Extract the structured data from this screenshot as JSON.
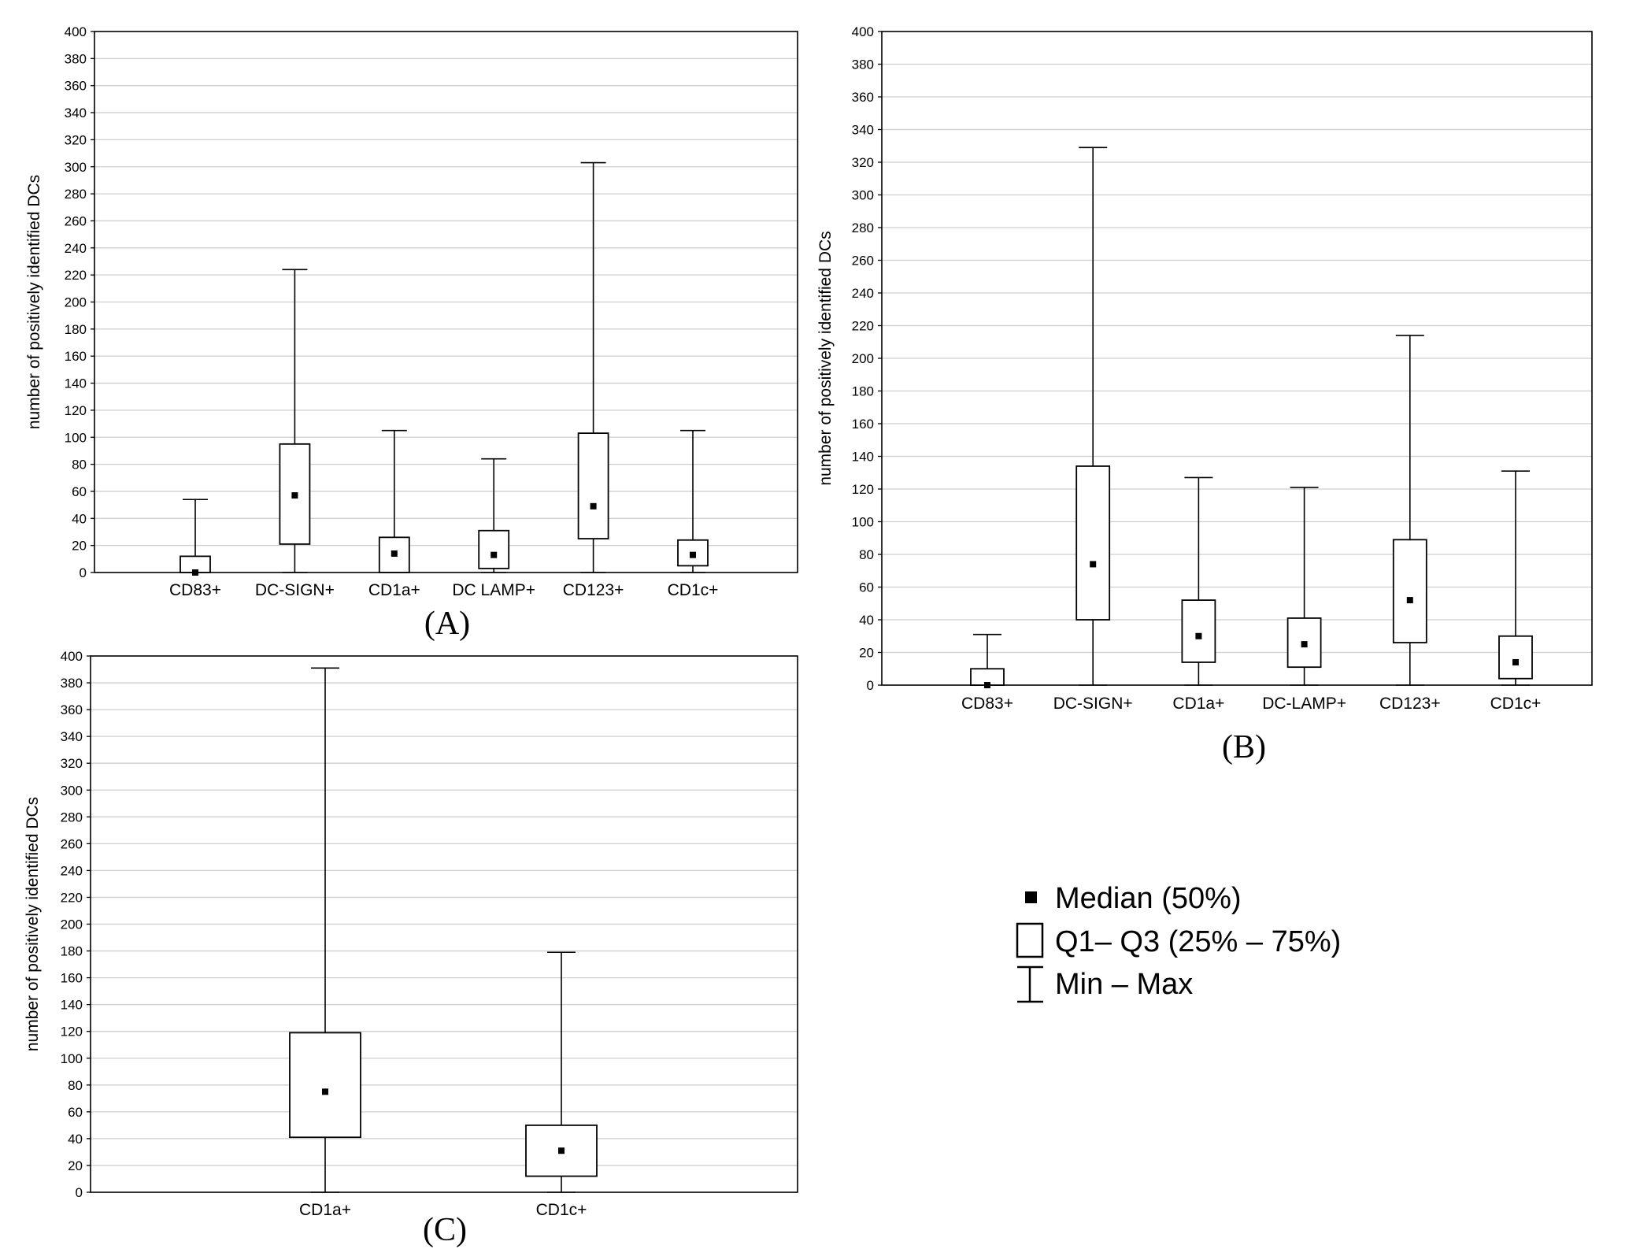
{
  "figure": {
    "panels": [
      {
        "id": "A",
        "label": "(A)"
      },
      {
        "id": "B",
        "label": "(B)"
      },
      {
        "id": "C",
        "label": "(C)"
      }
    ],
    "legend": {
      "median": "Median (50%)",
      "box": "Q1– Q3 (25% – 75%)",
      "range": "Min – Max"
    }
  },
  "chart_data": [
    {
      "type": "box",
      "panel": "(A)",
      "ylabel": "number of positively identified DCs",
      "ylim": [
        0,
        400
      ],
      "yticks": [
        0,
        20,
        40,
        60,
        80,
        100,
        120,
        140,
        160,
        180,
        200,
        220,
        240,
        260,
        280,
        300,
        320,
        340,
        360,
        380,
        400
      ],
      "grid": true,
      "categories": [
        "CD83+",
        "DC-SIGN+",
        "CD1a+",
        "DC LAMP+",
        "CD123+",
        "CD1c+"
      ],
      "boxes": [
        {
          "min": 0,
          "q1": 0,
          "median": 0,
          "q3": 12,
          "max": 54
        },
        {
          "min": 0,
          "q1": 21,
          "median": 57,
          "q3": 95,
          "max": 224
        },
        {
          "min": 0,
          "q1": 0,
          "median": 14,
          "q3": 26,
          "max": 105
        },
        {
          "min": 0,
          "q1": 3,
          "median": 13,
          "q3": 31,
          "max": 84
        },
        {
          "min": 0,
          "q1": 25,
          "median": 49,
          "q3": 103,
          "max": 303
        },
        {
          "min": 0,
          "q1": 5,
          "median": 13,
          "q3": 24,
          "max": 105
        }
      ]
    },
    {
      "type": "box",
      "panel": "(B)",
      "ylabel": "number of positively identified DCs",
      "ylim": [
        0,
        400
      ],
      "yticks": [
        0,
        20,
        40,
        60,
        80,
        100,
        120,
        140,
        160,
        180,
        200,
        220,
        240,
        260,
        280,
        300,
        320,
        340,
        360,
        380,
        400
      ],
      "grid": true,
      "categories": [
        "CD83+",
        "DC-SIGN+",
        "CD1a+",
        "DC-LAMP+",
        "CD123+",
        "CD1c+"
      ],
      "boxes": [
        {
          "min": 0,
          "q1": 0,
          "median": 0,
          "q3": 10,
          "max": 31
        },
        {
          "min": 0,
          "q1": 40,
          "median": 74,
          "q3": 134,
          "max": 329
        },
        {
          "min": 0,
          "q1": 14,
          "median": 30,
          "q3": 52,
          "max": 127
        },
        {
          "min": 0,
          "q1": 11,
          "median": 25,
          "q3": 41,
          "max": 121
        },
        {
          "min": 0,
          "q1": 26,
          "median": 52,
          "q3": 89,
          "max": 214
        },
        {
          "min": 0,
          "q1": 4,
          "median": 14,
          "q3": 30,
          "max": 131
        }
      ]
    },
    {
      "type": "box",
      "panel": "(C)",
      "ylabel": "number of positively identified DCs",
      "ylim": [
        0,
        400
      ],
      "yticks": [
        0,
        20,
        40,
        60,
        80,
        100,
        120,
        140,
        160,
        180,
        200,
        220,
        240,
        260,
        280,
        300,
        320,
        340,
        360,
        380,
        400
      ],
      "grid": true,
      "categories": [
        "CD1a+",
        "CD1c+"
      ],
      "boxes": [
        {
          "min": 0,
          "q1": 41,
          "median": 75,
          "q3": 119,
          "max": 391
        },
        {
          "min": 0,
          "q1": 12,
          "median": 31,
          "q3": 50,
          "max": 179
        }
      ]
    }
  ]
}
